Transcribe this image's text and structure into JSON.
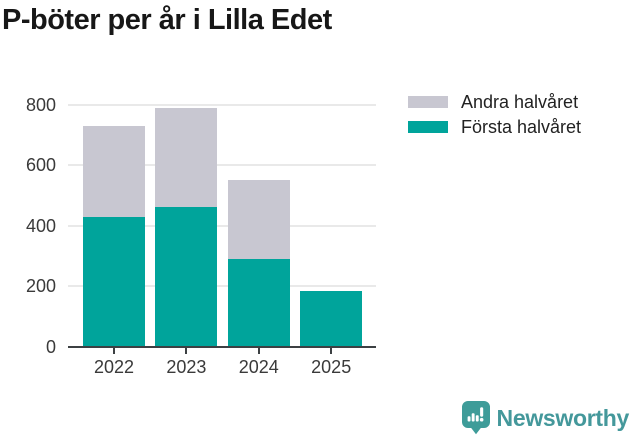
{
  "chart": {
    "title": "P-böter per år i Lilla Edet",
    "legend": [
      {
        "label": "Andra halvåret",
        "color": "#c8c7d1"
      },
      {
        "label": "Första halvåret",
        "color": "#00a49b"
      }
    ]
  },
  "chart_data": {
    "type": "bar",
    "stacked": true,
    "title": "P-böter per år i Lilla Edet",
    "categories": [
      "2022",
      "2023",
      "2024",
      "2025"
    ],
    "series": [
      {
        "name": "Första halvåret",
        "color": "#00a49b",
        "values": [
          430,
          463,
          290,
          185
        ]
      },
      {
        "name": "Andra halvåret",
        "color": "#c8c7d1",
        "values": [
          300,
          327,
          262,
          0
        ]
      }
    ],
    "totals": [
      730,
      790,
      552,
      185
    ],
    "xlabel": "",
    "ylabel": "",
    "ylim": [
      0,
      800
    ],
    "yticks": [
      0,
      200,
      400,
      600,
      800
    ],
    "grid": true,
    "legend_position": "top-right"
  },
  "colors": {
    "gridline": "#e9e9e9",
    "axis": "#3c4043",
    "title_text": "#171717",
    "tick_text": "#3a3a3a",
    "brand_teal": "#3e9c99"
  },
  "branding": {
    "logo_text": "Newsworthy"
  }
}
